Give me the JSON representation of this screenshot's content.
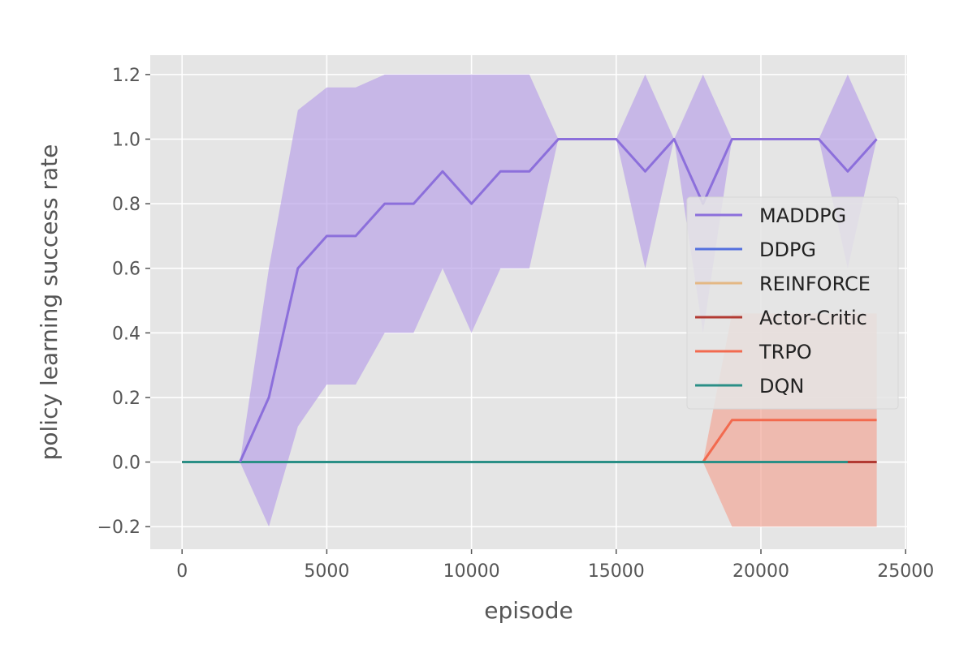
{
  "chart_data": {
    "type": "line",
    "title": "",
    "xlabel": "episode",
    "ylabel": "policy learning success rate",
    "xlim": [
      -1100,
      25050
    ],
    "ylim": [
      -0.27,
      1.26
    ],
    "xticks": [
      0,
      5000,
      10000,
      15000,
      20000,
      25000
    ],
    "xtick_labels": [
      "0",
      "5000",
      "10000",
      "15000",
      "20000",
      "25000"
    ],
    "yticks": [
      -0.2,
      0.0,
      0.2,
      0.4,
      0.6,
      0.8,
      1.0,
      1.2
    ],
    "ytick_labels": [
      "−0.2",
      "0.0",
      "0.2",
      "0.4",
      "0.6",
      "0.8",
      "1.0",
      "1.2"
    ],
    "grid": true,
    "legend_position": "center-right",
    "background_color": "#E5E5E5",
    "series": [
      {
        "name": "MADDPG",
        "color": "#8C6FDB",
        "band_color": "#BBA4E8",
        "x": [
          2000,
          3000,
          4000,
          5000,
          6000,
          7000,
          8000,
          9000,
          10000,
          11000,
          12000,
          13000,
          14000,
          15000,
          16000,
          17000,
          18000,
          19000,
          20000,
          21000,
          22000,
          23000,
          24000
        ],
        "y": [
          0.0,
          0.2,
          0.6,
          0.7,
          0.7,
          0.8,
          0.8,
          0.9,
          0.8,
          0.9,
          0.9,
          1.0,
          1.0,
          1.0,
          0.9,
          1.0,
          0.8,
          1.0,
          1.0,
          1.0,
          1.0,
          0.9,
          1.0
        ],
        "upper": [
          0.0,
          0.6,
          1.09,
          1.16,
          1.16,
          1.2,
          1.2,
          1.2,
          1.2,
          1.2,
          1.2,
          1.0,
          1.0,
          1.0,
          1.2,
          1.0,
          1.2,
          1.0,
          1.0,
          1.0,
          1.0,
          1.2,
          1.0
        ],
        "lower": [
          0.0,
          -0.2,
          0.11,
          0.24,
          0.24,
          0.4,
          0.4,
          0.6,
          0.4,
          0.6,
          0.6,
          1.0,
          1.0,
          1.0,
          0.6,
          1.0,
          0.4,
          1.0,
          1.0,
          1.0,
          1.0,
          0.6,
          1.0
        ]
      },
      {
        "name": "DDPG",
        "color": "#5470DE",
        "x": [
          0,
          24000
        ],
        "y": [
          0.0,
          0.0
        ]
      },
      {
        "name": "REINFORCE",
        "color": "#E4B884",
        "x": [
          0,
          24000
        ],
        "y": [
          0.0,
          0.0
        ]
      },
      {
        "name": "Actor-Critic",
        "color": "#B23A32",
        "x": [
          0,
          24000
        ],
        "y": [
          0.0,
          0.0
        ]
      },
      {
        "name": "TRPO",
        "color": "#F26A4F",
        "band_color": "#F2A898",
        "x": [
          18000,
          19000,
          20000,
          21000,
          22000,
          23000,
          24000
        ],
        "y": [
          0.0,
          0.13,
          0.13,
          0.13,
          0.13,
          0.13,
          0.13
        ],
        "upper": [
          0.0,
          0.46,
          0.46,
          0.46,
          0.46,
          0.46,
          0.46
        ],
        "lower": [
          0.0,
          -0.2,
          -0.2,
          -0.2,
          -0.2,
          -0.2,
          -0.2
        ]
      },
      {
        "name": "DQN",
        "color": "#2A8F86",
        "x": [
          0,
          23000
        ],
        "y": [
          0.0,
          0.0
        ]
      }
    ]
  }
}
